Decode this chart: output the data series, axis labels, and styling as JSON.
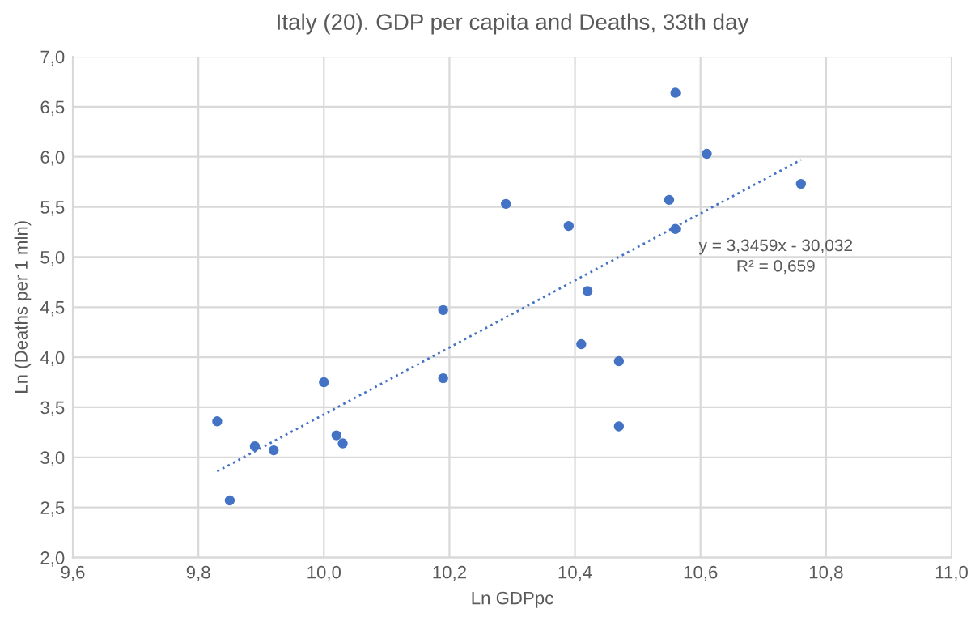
{
  "chart_data": {
    "type": "scatter",
    "title": "Italy (20). GDP per capita and Deaths, 33th day",
    "xlabel": "Ln GDPpc",
    "ylabel": "Ln (Deaths per 1 mln)",
    "series": [
      {
        "color": "#4472c4",
        "marker": "circle",
        "x": [
          9.83,
          9.85,
          9.89,
          9.92,
          10.0,
          10.02,
          10.03,
          10.19,
          10.19,
          10.29,
          10.39,
          10.41,
          10.42,
          10.47,
          10.47,
          10.55,
          10.56,
          10.56,
          10.61,
          10.76
        ],
        "values": [
          3.36,
          2.57,
          3.11,
          3.07,
          3.75,
          3.22,
          3.14,
          3.79,
          4.47,
          5.53,
          5.31,
          4.13,
          4.66,
          3.96,
          3.31,
          5.57,
          6.64,
          5.28,
          6.03,
          5.73
        ]
      },
      {
        "type": "line",
        "color": "#4472c4",
        "line_style": "dotted",
        "x": [
          9.83,
          10.76
        ],
        "values": [
          2.86,
          5.97
        ]
      }
    ],
    "annotations": [
      "y = 3,3459x - 30,032\nR² = 0,659"
    ],
    "xlim": [
      9.6,
      11.0
    ],
    "ylim": [
      2.0,
      7.0
    ],
    "xticks": [
      {
        "value": 9.6,
        "label": "9,6"
      },
      {
        "value": 9.8,
        "label": "9,8"
      },
      {
        "value": 10.0,
        "label": "10,0"
      },
      {
        "value": 10.2,
        "label": "10,2"
      },
      {
        "value": 10.4,
        "label": "10,4"
      },
      {
        "value": 10.6,
        "label": "10,6"
      },
      {
        "value": 10.8,
        "label": "10,8"
      },
      {
        "value": 11.0,
        "label": "11,0"
      }
    ],
    "yticks": [
      {
        "value": 2.0,
        "label": "2,0"
      },
      {
        "value": 2.5,
        "label": "2,5"
      },
      {
        "value": 3.0,
        "label": "3,0"
      },
      {
        "value": 3.5,
        "label": "3,5"
      },
      {
        "value": 4.0,
        "label": "4,0"
      },
      {
        "value": 4.5,
        "label": "4,5"
      },
      {
        "value": 5.0,
        "label": "5,0"
      },
      {
        "value": 5.5,
        "label": "5,5"
      },
      {
        "value": 6.0,
        "label": "6,0"
      },
      {
        "value": 6.5,
        "label": "6,5"
      },
      {
        "value": 7.0,
        "label": "7,0"
      }
    ],
    "grid": true
  }
}
